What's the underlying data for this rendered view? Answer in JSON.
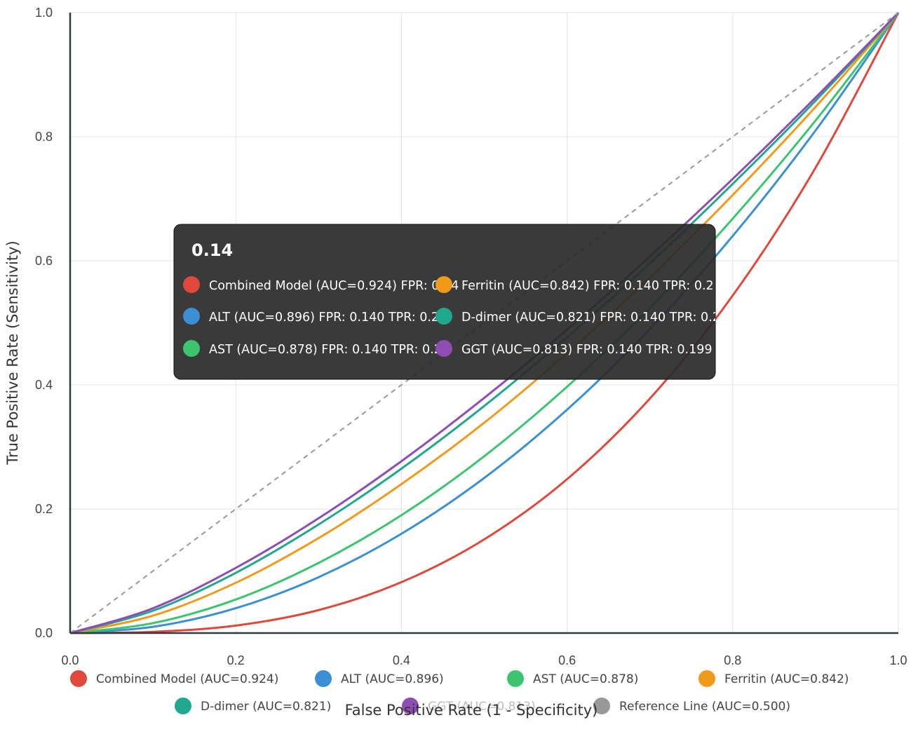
{
  "chart_data": {
    "type": "line",
    "xlabel": "False Positive Rate (1 - Specificity)",
    "ylabel": "True Positive Rate (Sensitivity)",
    "xlim": [
      0,
      1
    ],
    "ylim": [
      0,
      1
    ],
    "x_ticks": [
      "0.0",
      "0.2",
      "0.4",
      "0.6",
      "0.8",
      "1.0"
    ],
    "y_ticks": [
      "0.0",
      "0.2",
      "0.4",
      "0.6",
      "0.8",
      "1.0"
    ],
    "grid": true,
    "legend_position": "bottom",
    "x": [
      0,
      0.1,
      0.2,
      0.3,
      0.4,
      0.5,
      0.6,
      0.7,
      0.8,
      0.9,
      1.0
    ],
    "series": [
      {
        "name": "Combined Model (AUC=0.924)",
        "color": "#e0483c",
        "values": [
          0,
          0.002,
          0.012,
          0.037,
          0.082,
          0.151,
          0.248,
          0.378,
          0.544,
          0.75,
          1.0
        ]
      },
      {
        "name": "ALT (AUC=0.896)",
        "color": "#3b8fd4",
        "values": [
          0,
          0.01,
          0.04,
          0.09,
          0.16,
          0.25,
          0.36,
          0.49,
          0.64,
          0.81,
          1.0
        ]
      },
      {
        "name": "AST (AUC=0.878)",
        "color": "#3cc46e",
        "values": [
          0,
          0.016,
          0.054,
          0.113,
          0.19,
          0.285,
          0.397,
          0.524,
          0.668,
          0.826,
          1.0
        ]
      },
      {
        "name": "Ferritin (AUC=0.842)",
        "color": "#f09a1c",
        "values": [
          0,
          0.028,
          0.081,
          0.153,
          0.24,
          0.339,
          0.451,
          0.573,
          0.706,
          0.848,
          1.0
        ]
      },
      {
        "name": "D-dimer (AUC=0.821)",
        "color": "#1fa88e",
        "values": [
          0,
          0.036,
          0.097,
          0.175,
          0.265,
          0.366,
          0.477,
          0.596,
          0.724,
          0.858,
          1.0
        ]
      },
      {
        "name": "GGT (AUC=0.813)",
        "color": "#8e4db5",
        "values": [
          0,
          0.04,
          0.105,
          0.185,
          0.277,
          0.379,
          0.489,
          0.607,
          0.732,
          0.863,
          1.0
        ]
      },
      {
        "name": "Reference Line (AUC=0.500)",
        "color": "#999999",
        "dashed": true,
        "values": [
          0,
          0.1,
          0.2,
          0.3,
          0.4,
          0.5,
          0.6,
          0.7,
          0.8,
          0.9,
          1.0
        ]
      }
    ],
    "tooltip": {
      "title": "0.14",
      "entries": [
        {
          "text": "Combined Model (AUC=0.924) FPR: 0.14",
          "color": "#e0483c"
        },
        {
          "text": "ALT (AUC=0.896) FPR: 0.140 TPR: 0.2",
          "color": "#3b8fd4"
        },
        {
          "text": "AST (AUC=0.878) FPR: 0.140 TPR: 0.2",
          "color": "#3cc46e"
        },
        {
          "text": "Ferritin (AUC=0.842) FPR: 0.140 TPR: 0.2",
          "color": "#f09a1c"
        },
        {
          "text": "D-dimer (AUC=0.821) FPR: 0.140 TPR: 0.2",
          "color": "#1fa88e"
        },
        {
          "text": "GGT (AUC=0.813) FPR: 0.140 TPR: 0.199",
          "color": "#8e4db5"
        }
      ]
    }
  }
}
